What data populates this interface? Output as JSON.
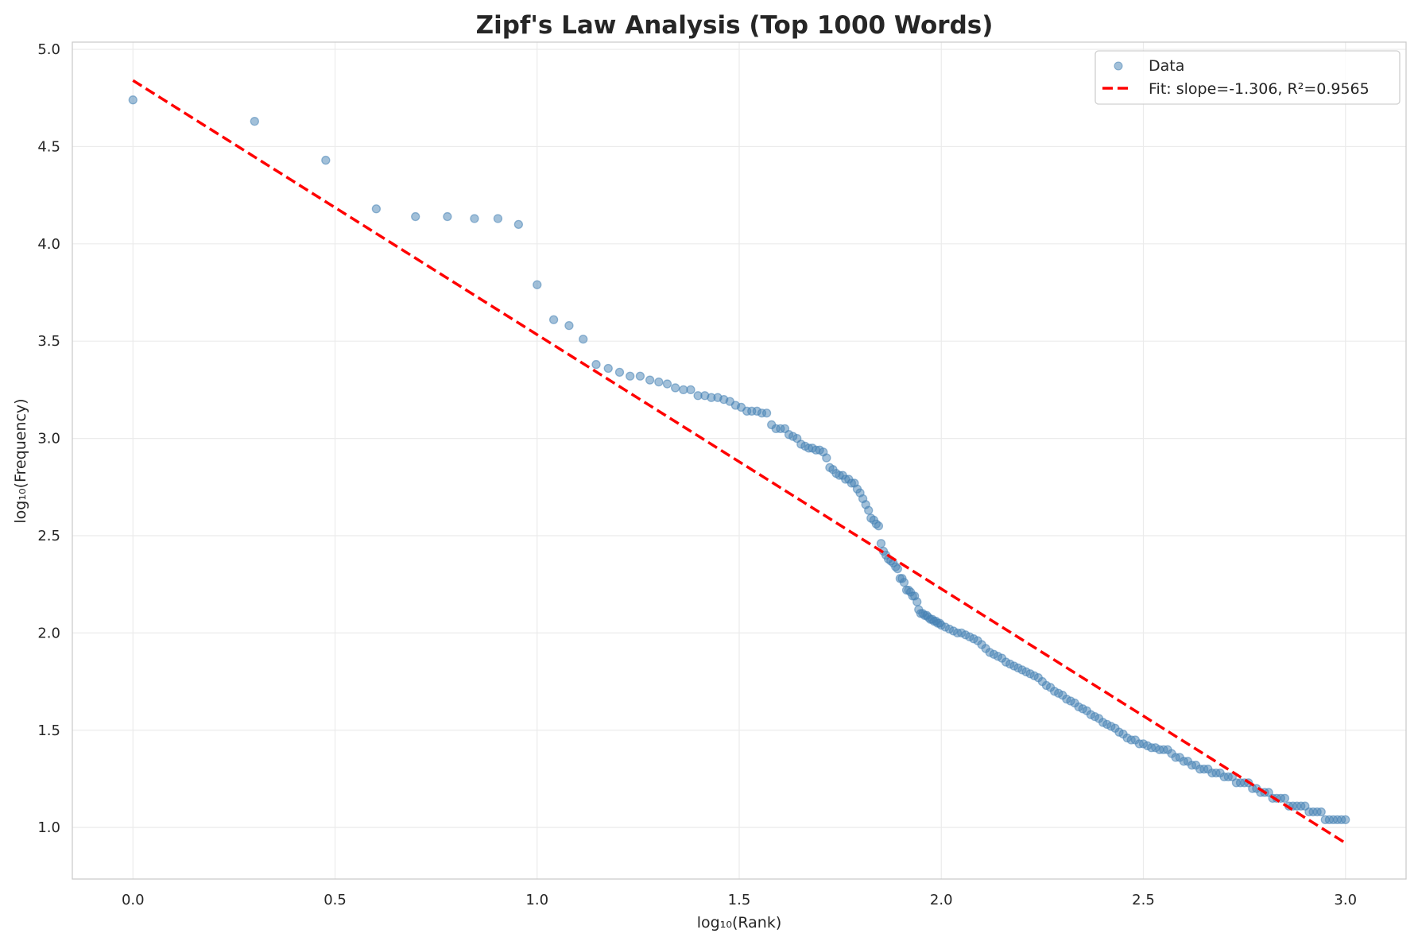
{
  "chart_data": {
    "type": "scatter",
    "title": "Zipf's Law Analysis (Top 1000 Words)",
    "xlabel": "log₁₀(Rank)",
    "ylabel": "log₁₀(Frequency)",
    "xlim": [
      -0.15,
      3.15
    ],
    "ylim": [
      0.735,
      5.037
    ],
    "xticks": [
      "0.0",
      "0.5",
      "1.0",
      "1.5",
      "2.0",
      "2.5",
      "3.0"
    ],
    "yticks": [
      "1.0",
      "1.5",
      "2.0",
      "2.5",
      "3.0",
      "3.5",
      "4.0",
      "4.5",
      "5.0"
    ],
    "grid": true,
    "legend_position": "top-right",
    "colors": {
      "data": "#4682b4",
      "fit": "#ff0000"
    },
    "series": [
      {
        "name": "Data",
        "points": [
          [
            0,
            4.74
          ],
          [
            0.301,
            4.63
          ],
          [
            0.477,
            4.43
          ],
          [
            0.602,
            4.18
          ],
          [
            0.699,
            4.14
          ],
          [
            0.778,
            4.14
          ],
          [
            0.845,
            4.13
          ],
          [
            0.903,
            4.13
          ],
          [
            0.954,
            4.1
          ],
          [
            1.0,
            3.79
          ],
          [
            1.041,
            3.61
          ],
          [
            1.079,
            3.58
          ],
          [
            1.114,
            3.51
          ],
          [
            1.146,
            3.38
          ],
          [
            1.176,
            3.36
          ],
          [
            1.204,
            3.34
          ],
          [
            1.23,
            3.32
          ],
          [
            1.255,
            3.32
          ],
          [
            1.279,
            3.3
          ],
          [
            1.301,
            3.29
          ],
          [
            1.322,
            3.28
          ],
          [
            1.342,
            3.26
          ],
          [
            1.362,
            3.25
          ],
          [
            1.38,
            3.25
          ],
          [
            1.398,
            3.22
          ],
          [
            1.415,
            3.22
          ],
          [
            1.431,
            3.21
          ],
          [
            1.447,
            3.21
          ],
          [
            1.462,
            3.2
          ],
          [
            1.477,
            3.19
          ],
          [
            1.491,
            3.17
          ],
          [
            1.505,
            3.16
          ],
          [
            1.519,
            3.14
          ],
          [
            1.531,
            3.14
          ],
          [
            1.544,
            3.14
          ],
          [
            1.556,
            3.13
          ],
          [
            1.568,
            3.13
          ],
          [
            1.58,
            3.07
          ],
          [
            1.591,
            3.05
          ],
          [
            1.602,
            3.05
          ],
          [
            1.613,
            3.05
          ],
          [
            1.623,
            3.02
          ],
          [
            1.633,
            3.01
          ],
          [
            1.643,
            3.0
          ],
          [
            1.653,
            2.97
          ],
          [
            1.663,
            2.96
          ],
          [
            1.672,
            2.95
          ],
          [
            1.681,
            2.95
          ],
          [
            1.69,
            2.94
          ],
          [
            1.699,
            2.94
          ],
          [
            1.708,
            2.93
          ],
          [
            1.716,
            2.9
          ],
          [
            1.724,
            2.85
          ],
          [
            1.732,
            2.84
          ],
          [
            1.74,
            2.82
          ],
          [
            1.748,
            2.81
          ],
          [
            1.756,
            2.81
          ],
          [
            1.763,
            2.79
          ],
          [
            1.771,
            2.79
          ],
          [
            1.778,
            2.77
          ],
          [
            1.785,
            2.77
          ],
          [
            1.792,
            2.74
          ],
          [
            1.799,
            2.72
          ],
          [
            1.806,
            2.69
          ],
          [
            1.813,
            2.66
          ],
          [
            1.82,
            2.63
          ],
          [
            1.826,
            2.59
          ],
          [
            1.833,
            2.58
          ],
          [
            1.839,
            2.56
          ],
          [
            1.845,
            2.55
          ],
          [
            1.851,
            2.46
          ],
          [
            1.857,
            2.42
          ],
          [
            1.863,
            2.4
          ],
          [
            1.869,
            2.38
          ],
          [
            1.875,
            2.37
          ],
          [
            1.881,
            2.36
          ],
          [
            1.887,
            2.34
          ],
          [
            1.892,
            2.33
          ],
          [
            1.898,
            2.28
          ],
          [
            1.903,
            2.28
          ],
          [
            1.908,
            2.26
          ],
          [
            1.914,
            2.22
          ],
          [
            1.919,
            2.22
          ],
          [
            1.924,
            2.21
          ],
          [
            1.929,
            2.19
          ],
          [
            1.934,
            2.19
          ],
          [
            1.94,
            2.16
          ],
          [
            1.944,
            2.12
          ],
          [
            1.949,
            2.1
          ],
          [
            1.954,
            2.1
          ],
          [
            1.959,
            2.09
          ],
          [
            1.964,
            2.09
          ],
          [
            1.968,
            2.08
          ],
          [
            1.973,
            2.07
          ],
          [
            1.978,
            2.07
          ],
          [
            1.982,
            2.06
          ],
          [
            1.987,
            2.06
          ],
          [
            1.991,
            2.05
          ],
          [
            1.996,
            2.05
          ],
          [
            2.0,
            2.04
          ],
          [
            2.01,
            2.03
          ],
          [
            2.02,
            2.02
          ],
          [
            2.03,
            2.01
          ],
          [
            2.04,
            2.0
          ],
          [
            2.05,
            2.0
          ],
          [
            2.06,
            1.99
          ],
          [
            2.07,
            1.98
          ],
          [
            2.08,
            1.97
          ],
          [
            2.09,
            1.96
          ],
          [
            2.1,
            1.94
          ],
          [
            2.11,
            1.92
          ],
          [
            2.12,
            1.9
          ],
          [
            2.13,
            1.89
          ],
          [
            2.14,
            1.88
          ],
          [
            2.15,
            1.87
          ],
          [
            2.16,
            1.85
          ],
          [
            2.17,
            1.84
          ],
          [
            2.18,
            1.83
          ],
          [
            2.19,
            1.82
          ],
          [
            2.2,
            1.81
          ],
          [
            2.21,
            1.8
          ],
          [
            2.22,
            1.79
          ],
          [
            2.23,
            1.78
          ],
          [
            2.24,
            1.77
          ],
          [
            2.25,
            1.75
          ],
          [
            2.26,
            1.73
          ],
          [
            2.27,
            1.72
          ],
          [
            2.28,
            1.7
          ],
          [
            2.29,
            1.69
          ],
          [
            2.3,
            1.68
          ],
          [
            2.31,
            1.66
          ],
          [
            2.32,
            1.65
          ],
          [
            2.33,
            1.64
          ],
          [
            2.34,
            1.62
          ],
          [
            2.35,
            1.61
          ],
          [
            2.36,
            1.6
          ],
          [
            2.37,
            1.58
          ],
          [
            2.38,
            1.57
          ],
          [
            2.39,
            1.56
          ],
          [
            2.4,
            1.54
          ],
          [
            2.41,
            1.53
          ],
          [
            2.42,
            1.52
          ],
          [
            2.43,
            1.51
          ],
          [
            2.44,
            1.49
          ],
          [
            2.45,
            1.48
          ],
          [
            2.46,
            1.46
          ],
          [
            2.47,
            1.45
          ],
          [
            2.48,
            1.45
          ],
          [
            2.49,
            1.43
          ],
          [
            2.5,
            1.43
          ],
          [
            2.51,
            1.42
          ],
          [
            2.52,
            1.41
          ],
          [
            2.53,
            1.41
          ],
          [
            2.54,
            1.4
          ],
          [
            2.55,
            1.4
          ],
          [
            2.56,
            1.4
          ],
          [
            2.57,
            1.38
          ],
          [
            2.58,
            1.36
          ],
          [
            2.59,
            1.36
          ],
          [
            2.6,
            1.34
          ],
          [
            2.61,
            1.34
          ],
          [
            2.62,
            1.32
          ],
          [
            2.63,
            1.32
          ],
          [
            2.64,
            1.3
          ],
          [
            2.65,
            1.3
          ],
          [
            2.66,
            1.3
          ],
          [
            2.67,
            1.28
          ],
          [
            2.68,
            1.28
          ],
          [
            2.69,
            1.28
          ],
          [
            2.7,
            1.26
          ],
          [
            2.71,
            1.26
          ],
          [
            2.72,
            1.26
          ],
          [
            2.73,
            1.23
          ],
          [
            2.74,
            1.23
          ],
          [
            2.75,
            1.23
          ],
          [
            2.76,
            1.23
          ],
          [
            2.77,
            1.2
          ],
          [
            2.78,
            1.2
          ],
          [
            2.79,
            1.18
          ],
          [
            2.8,
            1.18
          ],
          [
            2.81,
            1.18
          ],
          [
            2.82,
            1.15
          ],
          [
            2.83,
            1.15
          ],
          [
            2.84,
            1.15
          ],
          [
            2.85,
            1.15
          ],
          [
            2.86,
            1.11
          ],
          [
            2.87,
            1.11
          ],
          [
            2.88,
            1.11
          ],
          [
            2.89,
            1.11
          ],
          [
            2.9,
            1.11
          ],
          [
            2.91,
            1.08
          ],
          [
            2.92,
            1.08
          ],
          [
            2.93,
            1.08
          ],
          [
            2.94,
            1.08
          ],
          [
            2.95,
            1.04
          ],
          [
            2.96,
            1.04
          ],
          [
            2.97,
            1.04
          ],
          [
            2.98,
            1.04
          ],
          [
            2.99,
            1.04
          ],
          [
            3.0,
            1.04
          ]
        ]
      },
      {
        "name": "Fit: slope=-1.306, R²=0.9565",
        "type": "line",
        "style": "dashed",
        "slope": -1.306,
        "r_squared": 0.9565,
        "x": [
          0,
          3.0
        ],
        "y": [
          4.84,
          0.92
        ]
      }
    ]
  }
}
